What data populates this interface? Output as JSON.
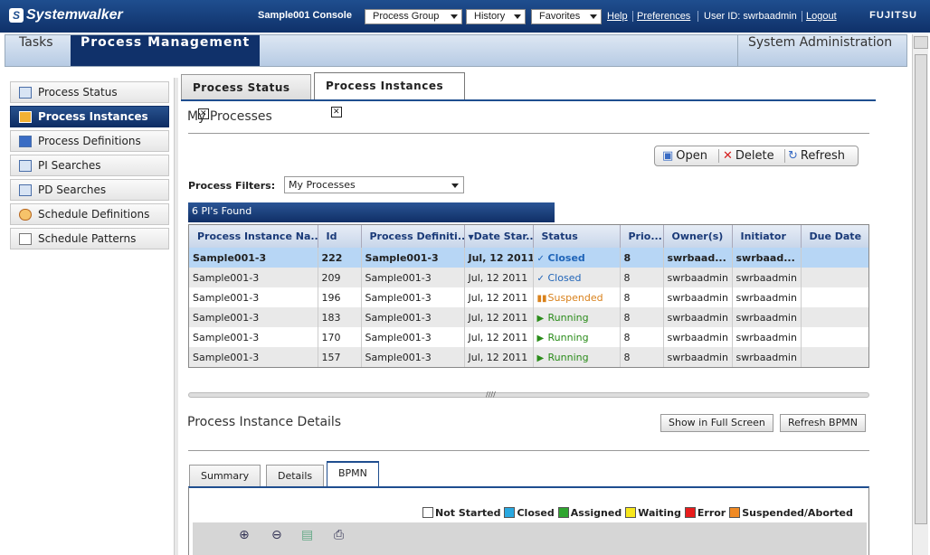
{
  "topbar": {
    "brand": "Systemwalker",
    "console": "Sample001 Console",
    "menus": [
      "Process Group",
      "History",
      "Favorites"
    ],
    "help": "Help",
    "preferences": "Preferences",
    "user": "User ID: swrbaadmin",
    "logout": "Logout",
    "vendor": "FUJITSU"
  },
  "mainnav": {
    "tasks": "Tasks",
    "process_management": "Process Management",
    "system_admin": "System Administration"
  },
  "sidebar": {
    "items": [
      {
        "label": "Process Status",
        "icon": "process-status-icon"
      },
      {
        "label": "Process Instances",
        "icon": "process-instances-icon"
      },
      {
        "label": "Process Definitions",
        "icon": "process-definitions-icon"
      },
      {
        "label": "PI Searches",
        "icon": "search-icon"
      },
      {
        "label": "PD Searches",
        "icon": "search-icon"
      },
      {
        "label": "Schedule Definitions",
        "icon": "clock-icon"
      },
      {
        "label": "Schedule Patterns",
        "icon": "list-icon"
      }
    ]
  },
  "tabs": [
    "Process Status",
    "Process Instances"
  ],
  "page": {
    "title": "My Processes",
    "toolbar": {
      "open": "Open",
      "delete": "Delete",
      "refresh": "Refresh"
    },
    "filter_label": "Process Filters:",
    "filter_value": "My Processes",
    "found": "6 PI's Found"
  },
  "table": {
    "columns": [
      "Process Instance Na...",
      "Id",
      "Process Definiti...",
      "Date Star...",
      "Status",
      "Prio...",
      "Owner(s)",
      "Initiator",
      "Due Date"
    ],
    "rows": [
      [
        "Sample001-3",
        "222",
        "Sample001-3",
        "Jul, 12 2011",
        "Closed",
        "8",
        "swrbaad...",
        "swrbaad...",
        ""
      ],
      [
        "Sample001-3",
        "209",
        "Sample001-3",
        "Jul, 12 2011",
        "Closed",
        "8",
        "swrbaadmin",
        "swrbaadmin",
        ""
      ],
      [
        "Sample001-3",
        "196",
        "Sample001-3",
        "Jul, 12 2011",
        "Suspended",
        "8",
        "swrbaadmin",
        "swrbaadmin",
        ""
      ],
      [
        "Sample001-3",
        "183",
        "Sample001-3",
        "Jul, 12 2011",
        "Running",
        "8",
        "swrbaadmin",
        "swrbaadmin",
        ""
      ],
      [
        "Sample001-3",
        "170",
        "Sample001-3",
        "Jul, 12 2011",
        "Running",
        "8",
        "swrbaadmin",
        "swrbaadmin",
        ""
      ],
      [
        "Sample001-3",
        "157",
        "Sample001-3",
        "Jul, 12 2011",
        "Running",
        "8",
        "swrbaadmin",
        "swrbaadmin",
        ""
      ]
    ]
  },
  "details": {
    "title": "Process Instance Details",
    "full_screen": "Show in Full Screen",
    "refresh_bpmn": "Refresh BPMN",
    "tabs": [
      "Summary",
      "Details",
      "BPMN"
    ],
    "legend": [
      {
        "label": "Not Started",
        "color": "#ffffff"
      },
      {
        "label": "Closed",
        "color": "#29a8e0"
      },
      {
        "label": "Assigned",
        "color": "#2fa52f"
      },
      {
        "label": "Waiting",
        "color": "#f7e71c"
      },
      {
        "label": "Error",
        "color": "#e81c1c"
      },
      {
        "label": "Suspended/Aborted",
        "color": "#f08a24"
      }
    ]
  },
  "colors": {
    "accent": "#10316a",
    "selected_row": "#b7d6f5"
  }
}
